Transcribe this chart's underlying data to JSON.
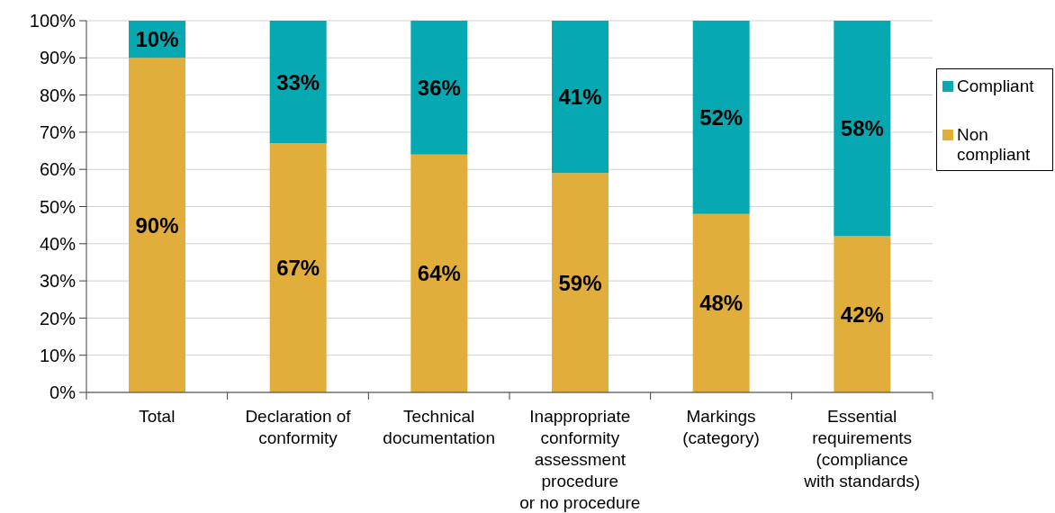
{
  "chart_data": {
    "type": "bar",
    "stacked": true,
    "categories": [
      "Total",
      "Declaration of\nconformity",
      "Technical\ndocumentation",
      "Inappropriate\nconformity\nassessment\nprocedure\nor no procedure",
      "Markings\n(category)",
      "Essential\nrequirements\n(compliance\nwith standards)"
    ],
    "series": [
      {
        "name": "Non compliant",
        "color": "#e1ae3c",
        "values": [
          90,
          67,
          64,
          59,
          48,
          42
        ],
        "value_labels": [
          "90%",
          "67%",
          "64%",
          "59%",
          "48%",
          "42%"
        ]
      },
      {
        "name": "Compliant",
        "color": "#06a8b1",
        "values": [
          10,
          33,
          36,
          41,
          52,
          58
        ],
        "value_labels": [
          "10%",
          "33%",
          "36%",
          "41%",
          "52%",
          "58%"
        ]
      }
    ],
    "ylim": [
      0,
      100
    ],
    "yticks": [
      {
        "value": 0,
        "label": "0%"
      },
      {
        "value": 10,
        "label": "10%"
      },
      {
        "value": 20,
        "label": "20%"
      },
      {
        "value": 30,
        "label": "30%"
      },
      {
        "value": 40,
        "label": "40%"
      },
      {
        "value": 50,
        "label": "50%"
      },
      {
        "value": 60,
        "label": "60%"
      },
      {
        "value": 70,
        "label": "70%"
      },
      {
        "value": 80,
        "label": "80%"
      },
      {
        "value": 90,
        "label": "90%"
      },
      {
        "value": 100,
        "label": "100%"
      }
    ],
    "grid": "y",
    "legend": "right"
  }
}
